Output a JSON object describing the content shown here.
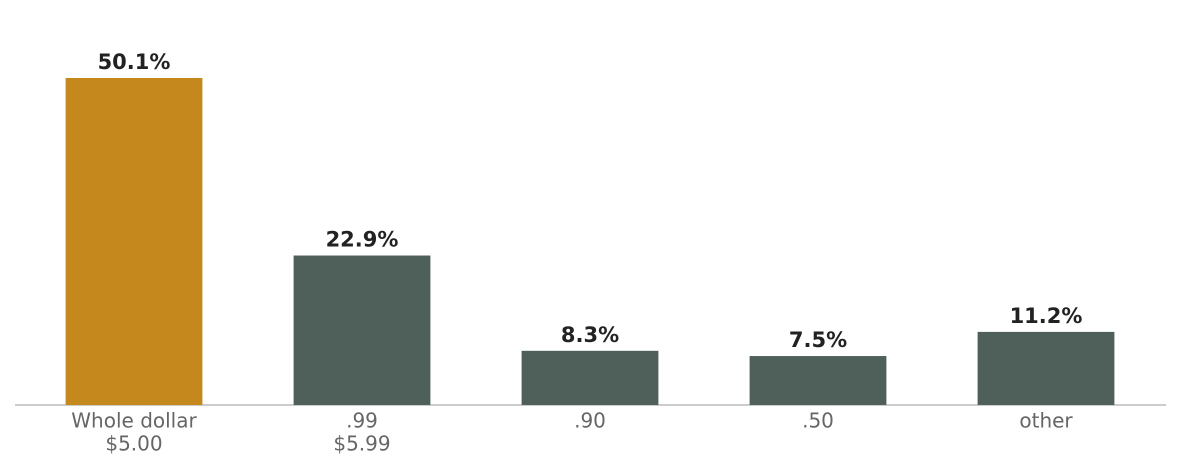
{
  "chart_data": {
    "type": "bar",
    "categories": [
      "Whole dollar",
      ".99",
      ".90",
      ".50",
      "other"
    ],
    "category_sublabels": [
      "$5.00",
      "$5.99",
      null,
      null,
      null
    ],
    "values": [
      50.1,
      22.9,
      8.3,
      7.5,
      11.2
    ],
    "value_labels": [
      "50.1%",
      "22.9%",
      "8.3%",
      "7.5%",
      "11.2%"
    ],
    "colors": [
      "#c5881c",
      "#4f5f59",
      "#4f5f59",
      "#4f5f59",
      "#4f5f59"
    ],
    "ylim": [
      0,
      55
    ]
  }
}
